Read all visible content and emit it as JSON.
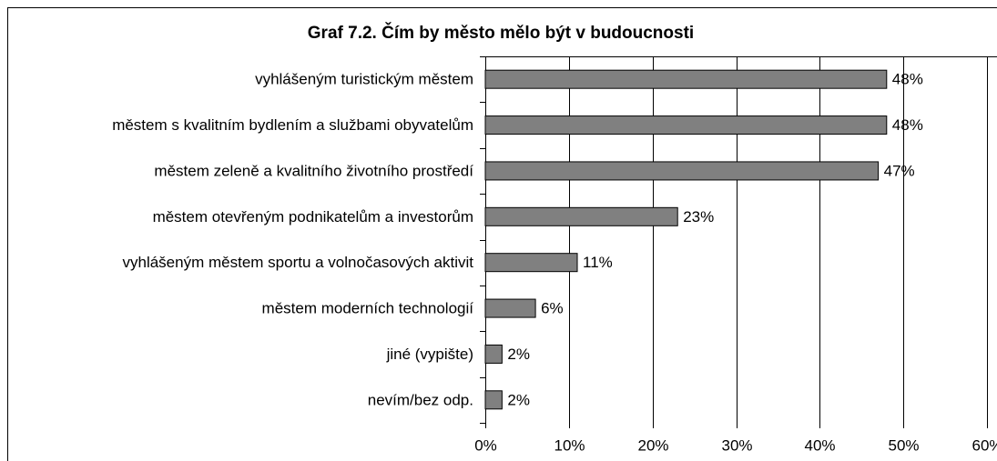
{
  "chart_data": {
    "type": "bar",
    "orientation": "horizontal",
    "title": "Graf 7.2. Čím by město mělo být v budoucnosti",
    "categories": [
      "vyhlášeným turistickým městem",
      "městem s kvalitním bydlením a službami obyvatelům",
      "městem zeleně a kvalitního životního prostředí",
      "městem otevřeným podnikatelům a investorům ",
      "vyhlášeným městem sportu a volnočasových aktivit",
      "městem moderních technologií",
      "jiné (vypište)",
      "nevím/bez odp."
    ],
    "values": [
      48,
      48,
      47,
      23,
      11,
      6,
      2,
      2
    ],
    "value_labels": [
      "48%",
      "48%",
      "47%",
      "23%",
      "11%",
      "6%",
      "2%",
      "2%"
    ],
    "color": "#808080",
    "xlim": [
      0,
      60
    ],
    "xticks": [
      {
        "value": 0,
        "label": "0%"
      },
      {
        "value": 10,
        "label": "10%"
      },
      {
        "value": 20,
        "label": "20%"
      },
      {
        "value": 30,
        "label": "30%"
      },
      {
        "value": 40,
        "label": "40%"
      },
      {
        "value": 50,
        "label": "50%"
      },
      {
        "value": 60,
        "label": "60%"
      }
    ],
    "grid": true
  }
}
